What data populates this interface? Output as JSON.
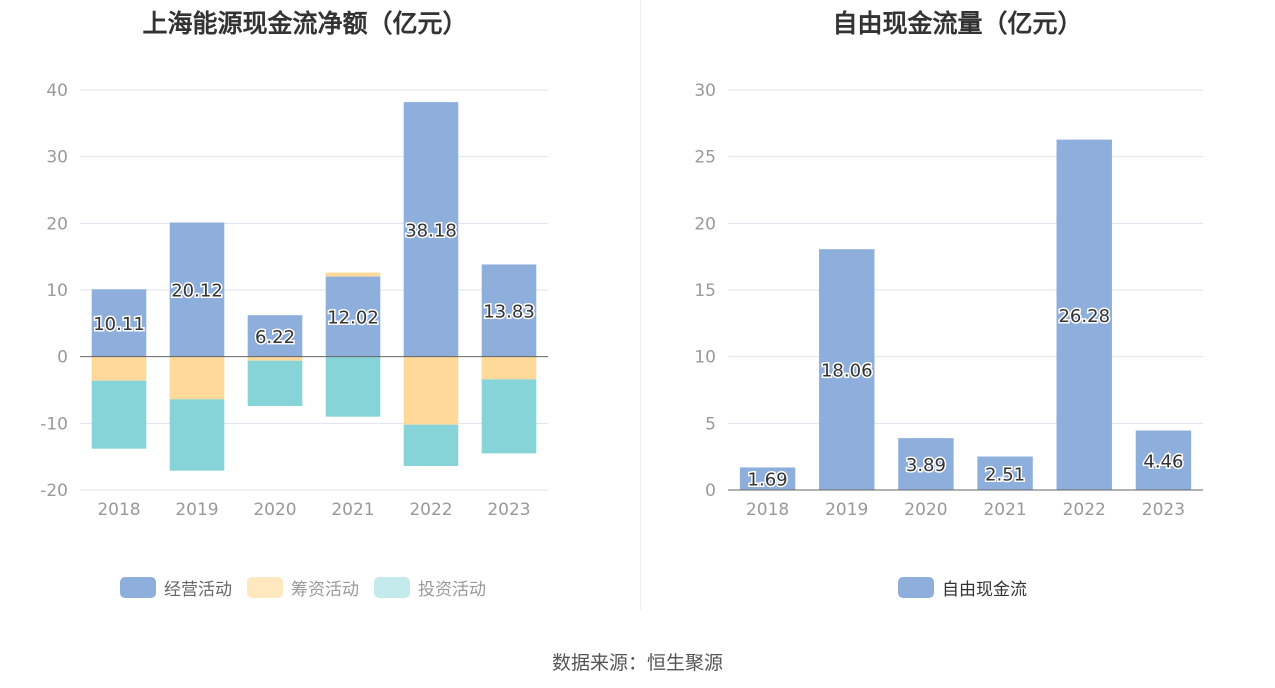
{
  "chart_data": [
    {
      "type": "bar",
      "stacked": true,
      "title": "上海能源现金流净额（亿元）",
      "categories": [
        "2018",
        "2019",
        "2020",
        "2021",
        "2022",
        "2023"
      ],
      "ylim": [
        -20,
        40
      ],
      "yticks": [
        40,
        30,
        20,
        10,
        0,
        -10,
        -20
      ],
      "ytick_labels": [
        "40",
        "30",
        "20",
        "10",
        "0",
        "-10",
        "-20"
      ],
      "grid": true,
      "legend_position": "bottom",
      "series": [
        {
          "name": "经营活动",
          "color": "#8eaedb",
          "values": [
            10.11,
            20.12,
            6.22,
            12.02,
            38.18,
            13.83
          ],
          "labels": [
            "10.11",
            "20.12",
            "6.22",
            "12.02",
            "38.18",
            "13.83"
          ]
        },
        {
          "name": "筹资活动",
          "color": "#ffd99a",
          "values": [
            -3.6,
            -6.4,
            -0.6,
            0.6,
            -10.2,
            -3.4
          ]
        },
        {
          "name": "投资活动",
          "color": "#86d4d7",
          "values": [
            -10.2,
            -10.7,
            -6.8,
            -9.0,
            -6.2,
            -11.1
          ]
        }
      ]
    },
    {
      "type": "bar",
      "title": "自由现金流量（亿元）",
      "categories": [
        "2018",
        "2019",
        "2020",
        "2021",
        "2022",
        "2023"
      ],
      "ylim": [
        0,
        30
      ],
      "yticks": [
        30,
        25,
        20,
        15,
        10,
        5,
        0
      ],
      "ytick_labels": [
        "30",
        "25",
        "20",
        "15",
        "10",
        "5",
        "0"
      ],
      "grid": true,
      "legend_position": "bottom",
      "series": [
        {
          "name": "自由现金流",
          "color": "#8eaedb",
          "values": [
            1.69,
            18.06,
            3.89,
            2.51,
            26.28,
            4.46
          ],
          "labels": [
            "1.69",
            "18.06",
            "3.89",
            "2.51",
            "26.28",
            "4.46"
          ]
        }
      ]
    }
  ],
  "colors": {
    "grid": "#e0e3ef",
    "axis": "#666666",
    "tick_text": "#999999",
    "label_text": "#333333",
    "label_outline": "#ffffff",
    "inactive_legend": "#999999"
  },
  "legend_left": [
    {
      "label": "经营活动",
      "color": "#8eaedb"
    },
    {
      "label": "筹资活动",
      "color": "#ffe7c0"
    },
    {
      "label": "投资活动",
      "color": "#c4eaeb"
    }
  ],
  "legend_right": [
    {
      "label": "自由现金流",
      "color": "#8eaedb"
    }
  ],
  "source": "数据来源：恒生聚源"
}
